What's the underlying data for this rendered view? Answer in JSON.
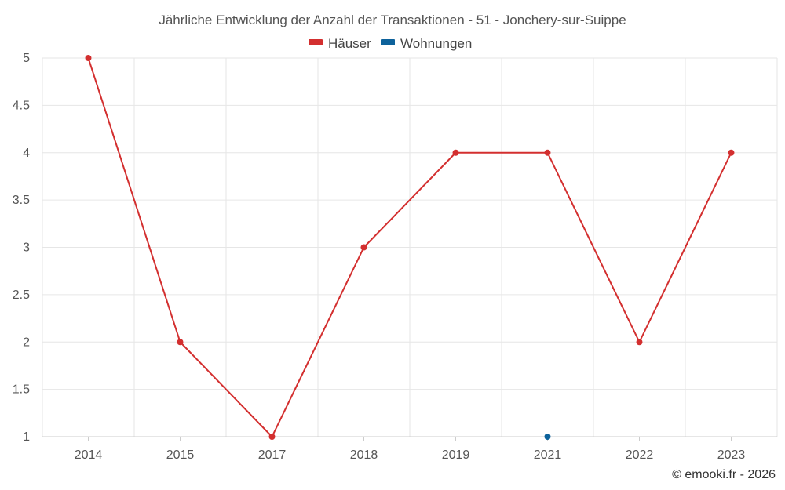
{
  "chart_data": {
    "type": "line",
    "title": "Jährliche Entwicklung der Anzahl der Transaktionen - 51 - Jonchery-sur-Suippe",
    "categories": [
      "2014",
      "2015",
      "2017",
      "2018",
      "2019",
      "2021",
      "2022",
      "2023"
    ],
    "yticks": [
      "1",
      "1.5",
      "2",
      "2.5",
      "3",
      "3.5",
      "4",
      "4.5",
      "5"
    ],
    "ylim": [
      1,
      5
    ],
    "legend_position": "top-center",
    "grid": true,
    "series": [
      {
        "name": "Häuser",
        "color": "#d32f2f",
        "values": [
          5,
          2,
          1,
          3,
          4,
          4,
          2,
          4
        ]
      },
      {
        "name": "Wohnungen",
        "color": "#0d629b",
        "values": [
          null,
          null,
          null,
          null,
          null,
          1,
          null,
          null
        ]
      }
    ],
    "credit": "© emooki.fr - 2026"
  }
}
